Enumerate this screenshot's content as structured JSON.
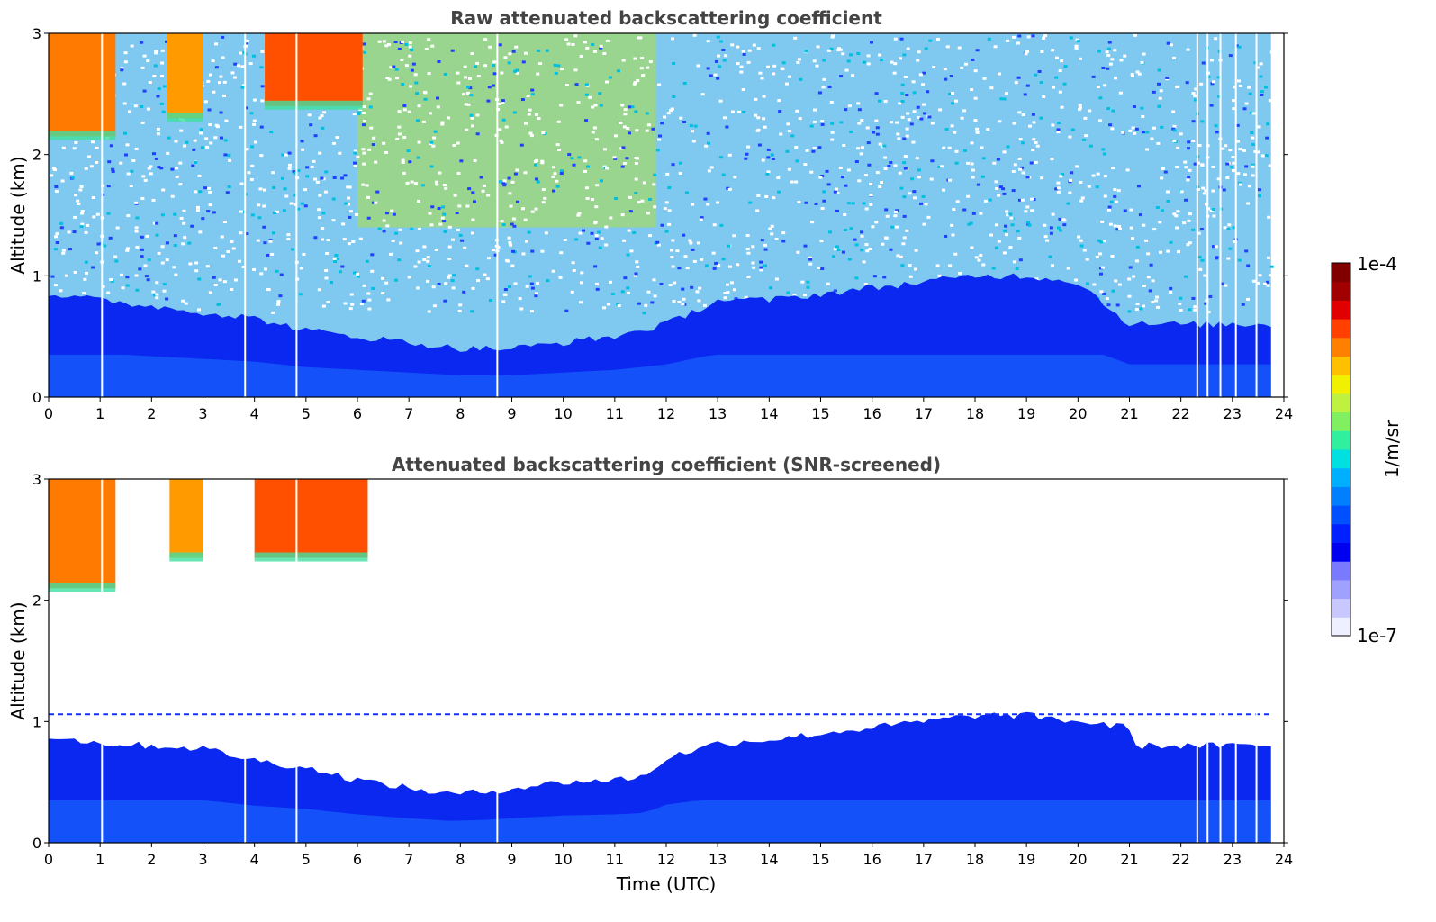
{
  "chart_data": [
    {
      "type": "heatmap",
      "title": "Raw attenuated backscattering coefficient",
      "ylabel": "Altitude (km)",
      "xlabel": "",
      "xlim": [
        0,
        24
      ],
      "ylim": [
        0,
        3
      ],
      "x_ticks": [
        "0",
        "1",
        "2",
        "3",
        "4",
        "5",
        "6",
        "7",
        "8",
        "9",
        "10",
        "11",
        "12",
        "13",
        "14",
        "15",
        "16",
        "17",
        "18",
        "19",
        "20",
        "21",
        "22",
        "23",
        "24"
      ],
      "y_ticks": [
        "0",
        "1",
        "2",
        "3"
      ],
      "aerosol_top_km": [
        [
          0,
          0.85
        ],
        [
          1,
          0.8
        ],
        [
          2,
          0.75
        ],
        [
          3,
          0.7
        ],
        [
          4,
          0.65
        ],
        [
          5,
          0.55
        ],
        [
          6,
          0.5
        ],
        [
          7,
          0.45
        ],
        [
          8,
          0.4
        ],
        [
          9,
          0.4
        ],
        [
          10,
          0.45
        ],
        [
          11,
          0.5
        ],
        [
          12,
          0.6
        ],
        [
          13,
          0.8
        ],
        [
          14,
          0.8
        ],
        [
          15,
          0.85
        ],
        [
          16,
          0.9
        ],
        [
          17,
          0.95
        ],
        [
          18,
          1.0
        ],
        [
          19,
          1.0
        ],
        [
          20,
          0.95
        ],
        [
          21,
          0.6
        ],
        [
          22,
          0.6
        ],
        [
          23,
          0.6
        ],
        [
          23.75,
          0.6
        ]
      ],
      "cloud_layers": [
        {
          "x_start": 0.0,
          "x_end": 1.3,
          "base_km": 2.15,
          "top_km": 3.0,
          "color": "#ff7a00"
        },
        {
          "x_start": 2.3,
          "x_end": 3.0,
          "base_km": 2.3,
          "top_km": 3.0,
          "color": "#ff9a00"
        },
        {
          "x_start": 4.2,
          "x_end": 6.1,
          "base_km": 2.4,
          "top_km": 3.0,
          "color": "#ff5000"
        }
      ],
      "noisy_region": {
        "x_start": 6.0,
        "x_end": 11.8,
        "min_km": 1.4,
        "color": "#b0e040"
      },
      "data_end_hour": 23.75,
      "gap_hours": [
        1.02,
        3.8,
        4.8,
        8.7,
        22.3,
        22.5,
        22.75,
        23.05,
        23.45
      ]
    },
    {
      "type": "heatmap",
      "title": "Attenuated backscattering coefficient (SNR-screened)",
      "ylabel": "Altitude (km)",
      "xlabel": "Time (UTC)",
      "xlim": [
        0,
        24
      ],
      "ylim": [
        0,
        3
      ],
      "x_ticks": [
        "0",
        "1",
        "2",
        "3",
        "4",
        "5",
        "6",
        "7",
        "8",
        "9",
        "10",
        "11",
        "12",
        "13",
        "14",
        "15",
        "16",
        "17",
        "18",
        "19",
        "20",
        "21",
        "22",
        "23",
        "24"
      ],
      "y_ticks": [
        "0",
        "1",
        "2",
        "3"
      ],
      "aerosol_top_km": [
        [
          0,
          0.88
        ],
        [
          1,
          0.82
        ],
        [
          2,
          0.8
        ],
        [
          3,
          0.78
        ],
        [
          4,
          0.68
        ],
        [
          5,
          0.62
        ],
        [
          6,
          0.52
        ],
        [
          7,
          0.45
        ],
        [
          7.8,
          0.4
        ],
        [
          8.5,
          0.42
        ],
        [
          9,
          0.45
        ],
        [
          10,
          0.5
        ],
        [
          11,
          0.52
        ],
        [
          11.6,
          0.55
        ],
        [
          12,
          0.7
        ],
        [
          13,
          0.82
        ],
        [
          14,
          0.85
        ],
        [
          15,
          0.9
        ],
        [
          16,
          0.95
        ],
        [
          17,
          1.0
        ],
        [
          18,
          1.05
        ],
        [
          19,
          1.05
        ],
        [
          20,
          1.0
        ],
        [
          21,
          0.95
        ],
        [
          21.1,
          0.8
        ],
        [
          22,
          0.8
        ],
        [
          23,
          0.8
        ],
        [
          23.75,
          0.8
        ]
      ],
      "cloud_layers": [
        {
          "x_start": 0.0,
          "x_end": 1.3,
          "base_km": 2.1,
          "top_km": 3.0,
          "color": "#ff7a00"
        },
        {
          "x_start": 2.35,
          "x_end": 3.0,
          "base_km": 2.35,
          "top_km": 3.0,
          "color": "#ff9a00"
        },
        {
          "x_start": 4.0,
          "x_end": 6.2,
          "base_km": 2.35,
          "top_km": 3.0,
          "color": "#ff5000"
        }
      ],
      "dashed_layer_km": 1.06,
      "data_end_hour": 23.75,
      "gap_hours": [
        1.02,
        3.8,
        4.8,
        8.7,
        22.3,
        22.5,
        22.75,
        23.05,
        23.45
      ]
    }
  ],
  "colorbar": {
    "max_label": "1e-4",
    "min_label": "1e-7",
    "label": "1/m/sr",
    "colors": [
      "#eef0ff",
      "#c8c8ff",
      "#a0a0ff",
      "#7a7aff",
      "#0000f0",
      "#0020ff",
      "#0050ff",
      "#0080ff",
      "#00b0ff",
      "#00e0e0",
      "#30f0a0",
      "#80f060",
      "#c0f040",
      "#f0f000",
      "#ffc000",
      "#ff8000",
      "#ff4000",
      "#e00000",
      "#a00000",
      "#800000"
    ]
  }
}
